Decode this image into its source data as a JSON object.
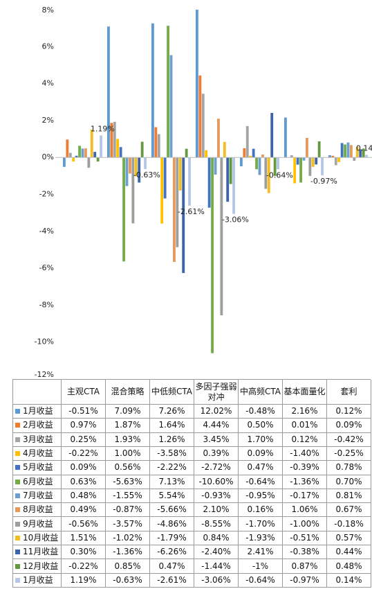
{
  "chart_data": {
    "type": "bar",
    "categories": [
      "主观CTA",
      "混合策略",
      "中低频CTA",
      "多因子强弱对冲",
      "中高频CTA",
      "基本面量化",
      "套利"
    ],
    "ylim": [
      -12,
      8
    ],
    "yticks": [
      {
        "value": -12,
        "label": "-12%"
      },
      {
        "value": -10,
        "label": "-10%"
      },
      {
        "value": -8,
        "label": "-8%"
      },
      {
        "value": -6,
        "label": "-6%"
      },
      {
        "value": -4,
        "label": "-4%"
      },
      {
        "value": -2,
        "label": "-2%"
      },
      {
        "value": 0,
        "label": "0%"
      },
      {
        "value": 2,
        "label": "2%"
      },
      {
        "value": 4,
        "label": "4%"
      },
      {
        "value": 6,
        "label": "6%"
      },
      {
        "value": 8,
        "label": "8%"
      }
    ],
    "grid": false,
    "series": [
      {
        "name": "1月收益",
        "color": "#5b9bd5",
        "values": [
          -0.51,
          7.09,
          7.26,
          12.02,
          -0.48,
          2.16,
          0.12
        ],
        "value_labels": [
          "-0.51%",
          "7.09%",
          "7.26%",
          "12.02%",
          "-0.48%",
          "2.16%",
          "0.12%"
        ]
      },
      {
        "name": "2月收益",
        "color": "#ed7d31",
        "values": [
          0.97,
          1.87,
          1.64,
          4.44,
          0.5,
          0.01,
          0.09
        ],
        "value_labels": [
          "0.97%",
          "1.87%",
          "1.64%",
          "4.44%",
          "0.50%",
          "0.01%",
          "0.09%"
        ]
      },
      {
        "name": "3月收益",
        "color": "#a5a5a5",
        "values": [
          0.25,
          1.93,
          1.26,
          3.45,
          1.7,
          0.12,
          -0.42
        ],
        "value_labels": [
          "0.25%",
          "1.93%",
          "1.26%",
          "3.45%",
          "1.70%",
          "0.12%",
          "-0.42%"
        ]
      },
      {
        "name": "4月收益",
        "color": "#ffc000",
        "values": [
          -0.22,
          1.0,
          -3.58,
          0.39,
          0.09,
          -1.4,
          -0.25
        ],
        "value_labels": [
          "-0.22%",
          "1.00%",
          "-3.58%",
          "0.39%",
          "0.09%",
          "-1.40%",
          "-0.25%"
        ]
      },
      {
        "name": "5月收益",
        "color": "#4472c4",
        "values": [
          0.09,
          0.56,
          -2.22,
          -2.72,
          0.47,
          -0.39,
          0.78
        ],
        "value_labels": [
          "0.09%",
          "0.56%",
          "-2.22%",
          "-2.72%",
          "0.47%",
          "-0.39%",
          "0.78%"
        ]
      },
      {
        "name": "6月收益",
        "color": "#70ad47",
        "values": [
          0.63,
          -5.63,
          7.13,
          -10.6,
          -0.64,
          -1.36,
          0.7
        ],
        "value_labels": [
          "0.63%",
          "-5.63%",
          "7.13%",
          "-10.60%",
          "-0.64%",
          "-1.36%",
          "0.70%"
        ]
      },
      {
        "name": "7月收益",
        "color": "#6d9ecf",
        "values": [
          0.48,
          -1.55,
          5.54,
          -0.93,
          -0.95,
          -0.17,
          0.81
        ],
        "value_labels": [
          "0.48%",
          "-1.55%",
          "5.54%",
          "-0.93%",
          "-0.95%",
          "-0.17%",
          "0.81%"
        ]
      },
      {
        "name": "8月收益",
        "color": "#e49a5c",
        "values": [
          0.49,
          -0.87,
          -5.66,
          2.1,
          0.16,
          1.06,
          0.67
        ],
        "value_labels": [
          "0.49%",
          "-0.87%",
          "-5.66%",
          "2.10%",
          "0.16%",
          "1.06%",
          "0.67%"
        ]
      },
      {
        "name": "9月收益",
        "color": "#9e9e9e",
        "values": [
          -0.56,
          -3.57,
          -4.86,
          -8.55,
          -1.7,
          -1.0,
          -0.18
        ],
        "value_labels": [
          "-0.56%",
          "-3.57%",
          "-4.86%",
          "-8.55%",
          "-1.70%",
          "-1.00%",
          "-0.18%"
        ]
      },
      {
        "name": "10月收益",
        "color": "#f2bf1e",
        "values": [
          1.51,
          -1.02,
          -1.79,
          0.84,
          -1.93,
          -0.51,
          0.57
        ],
        "value_labels": [
          "1.51%",
          "-1.02%",
          "-1.79%",
          "0.84%",
          "-1.93%",
          "-0.51%",
          "0.57%"
        ]
      },
      {
        "name": "11月收益",
        "color": "#3b64ad",
        "values": [
          0.3,
          -1.36,
          -6.26,
          -2.4,
          2.41,
          -0.38,
          0.44
        ],
        "value_labels": [
          "0.30%",
          "-1.36%",
          "-6.26%",
          "-2.40%",
          "2.41%",
          "-0.38%",
          "0.44%"
        ]
      },
      {
        "name": "12月收益",
        "color": "#639a3f",
        "values": [
          -0.22,
          0.85,
          0.47,
          -1.44,
          -1,
          0.87,
          0.48
        ],
        "value_labels": [
          "-0.22%",
          "0.85%",
          "0.47%",
          "-1.44%",
          "-1%",
          "0.87%",
          "0.48%"
        ]
      },
      {
        "name": "1月收益",
        "color": "#b4c7e7",
        "values": [
          1.19,
          -0.63,
          -2.61,
          -3.06,
          -0.64,
          -0.97,
          0.14
        ],
        "value_labels": [
          "1.19%",
          "-0.63%",
          "-2.61%",
          "-3.06%",
          "-0.64%",
          "-0.97%",
          "0.14%"
        ]
      }
    ]
  }
}
